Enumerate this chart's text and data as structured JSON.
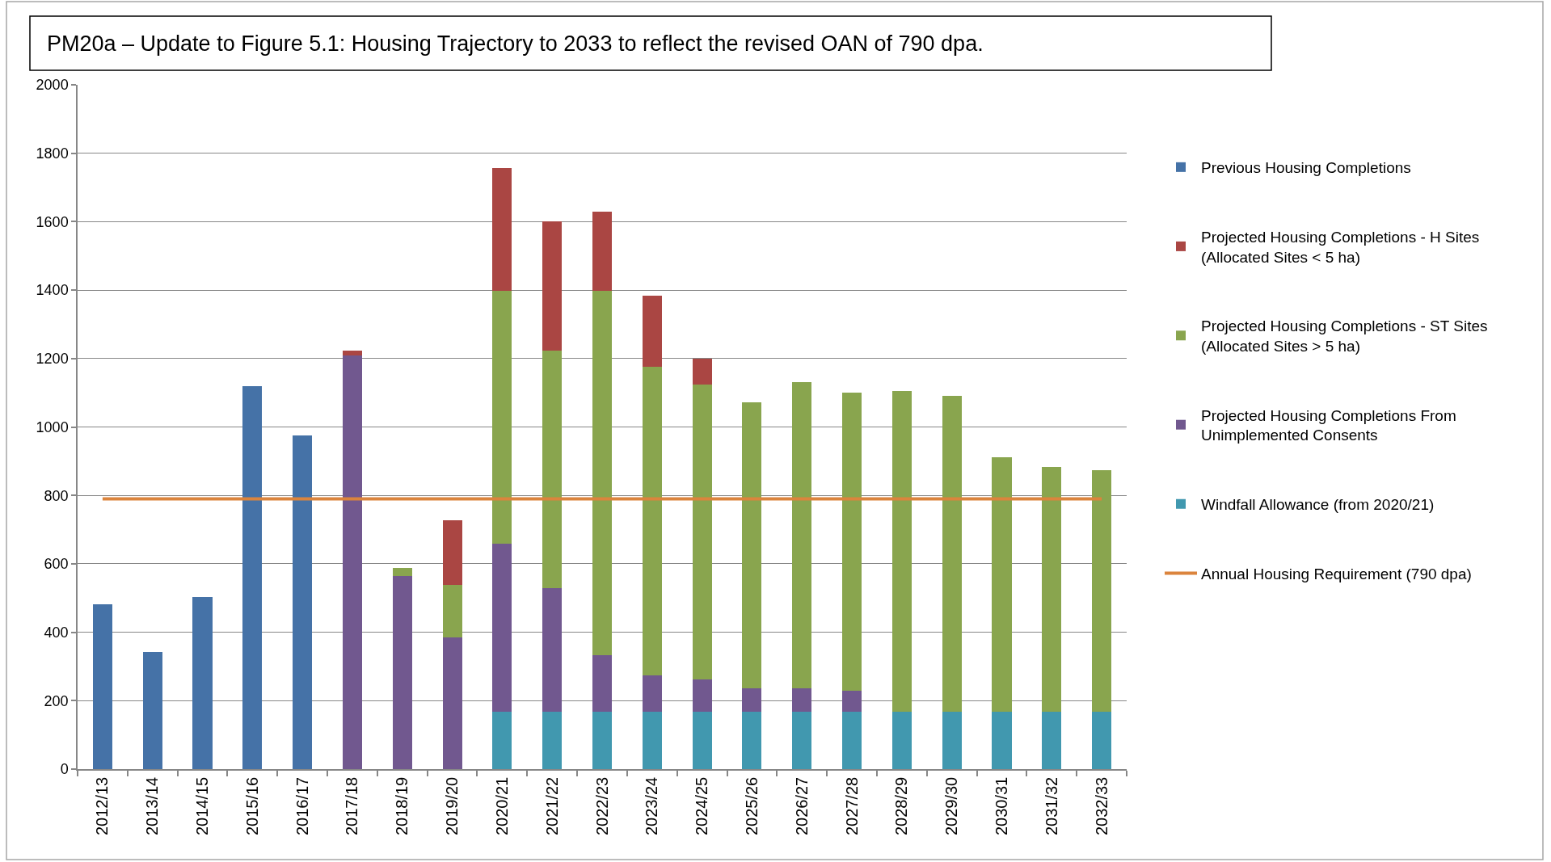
{
  "chart_data": {
    "type": "bar",
    "stacked": true,
    "title": "PM20a – Update to Figure 5.1: Housing Trajectory to 2033 to reflect the revised OAN of 790 dpa.",
    "categories": [
      "2012/13",
      "2013/14",
      "2014/15",
      "2015/16",
      "2016/17",
      "2017/18",
      "2018/19",
      "2019/20",
      "2020/21",
      "2021/22",
      "2022/23",
      "2023/24",
      "2024/25",
      "2025/26",
      "2026/27",
      "2027/28",
      "2028/29",
      "2029/30",
      "2030/31",
      "2031/32",
      "2032/33"
    ],
    "ylim": [
      0,
      2000
    ],
    "yticks": [
      0,
      200,
      400,
      600,
      800,
      1000,
      1200,
      1400,
      1600,
      1800,
      2000
    ],
    "grid": "y",
    "legend": "right",
    "marker": "none",
    "line_style": "solid",
    "series": [
      {
        "name": "Windfall Allowance (from 2020/21)",
        "color": "#4198af",
        "values": [
          null,
          null,
          null,
          null,
          null,
          null,
          null,
          null,
          167,
          167,
          167,
          167,
          167,
          167,
          167,
          167,
          167,
          167,
          167,
          167,
          167
        ]
      },
      {
        "name": "Projected Housing Completions From Unimplemented Consents",
        "color": "#71588f",
        "values": [
          null,
          null,
          null,
          null,
          null,
          1208,
          565,
          385,
          491,
          363,
          165,
          106,
          95,
          68,
          68,
          61,
          null,
          null,
          null,
          null,
          null
        ]
      },
      {
        "name": "Projected Housing Completions - ST Sites (Allocated Sites > 5 ha)",
        "color": "#89a54e",
        "values": [
          null,
          null,
          null,
          null,
          null,
          null,
          23,
          153,
          741,
          693,
          1065,
          904,
          861,
          838,
          895,
          872,
          939,
          925,
          744,
          717,
          706
        ]
      },
      {
        "name": "Projected Housing Completions - H Sites (Allocated Sites < 5 ha)",
        "color": "#aa4643",
        "values": [
          null,
          null,
          null,
          null,
          null,
          14,
          null,
          189,
          358,
          378,
          233,
          207,
          77,
          null,
          null,
          null,
          null,
          null,
          null,
          null,
          null
        ]
      },
      {
        "name": "Previous Housing Completions",
        "color": "#4572a7",
        "values": [
          481,
          342,
          503,
          1119,
          976,
          null,
          null,
          null,
          null,
          null,
          null,
          null,
          null,
          null,
          null,
          null,
          null,
          null,
          null,
          null,
          null
        ]
      },
      {
        "name": "Annual Housing Requirement (790 dpa)",
        "type": "line",
        "color": "#db843d",
        "values": [
          790,
          790,
          790,
          790,
          790,
          790,
          790,
          790,
          790,
          790,
          790,
          790,
          790,
          790,
          790,
          790,
          790,
          790,
          790,
          790,
          790
        ]
      }
    ]
  }
}
